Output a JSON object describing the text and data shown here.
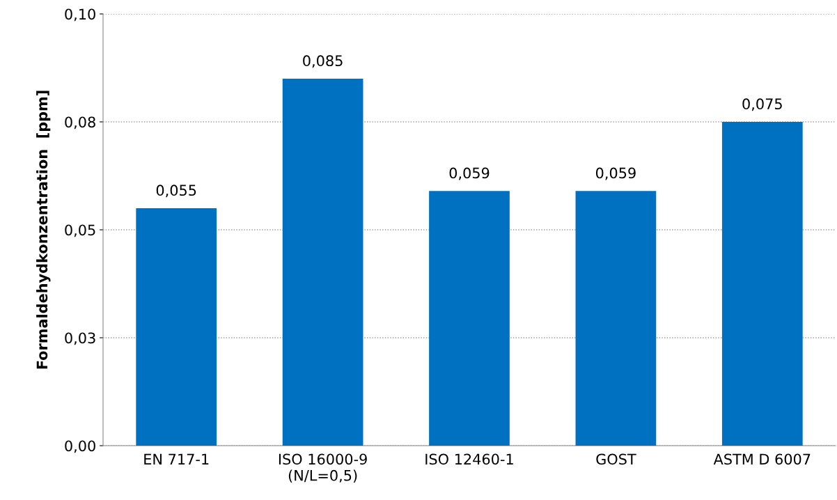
{
  "chart_data": {
    "type": "bar",
    "ylabel": "Formaldehydkonzentration  [ppm]",
    "categories": [
      "EN 717-1",
      "ISO 16000-9\n(N/L=0,5)",
      "ISO 12460-1",
      "GOST",
      "ASTM D 6007"
    ],
    "values": [
      0.055,
      0.085,
      0.059,
      0.059,
      0.075
    ],
    "value_labels": [
      "0,055",
      "0,085",
      "0,059",
      "0,059",
      "0,075"
    ],
    "color": "#0070c0",
    "ylim": [
      0,
      0.1
    ],
    "yticks": [
      {
        "value": 0,
        "label": "0,00"
      },
      {
        "value": 0.025,
        "label": "0,03"
      },
      {
        "value": 0.05,
        "label": "0,05"
      },
      {
        "value": 0.075,
        "label": "0,08"
      },
      {
        "value": 0.1,
        "label": "0,10"
      }
    ],
    "grid": "y"
  }
}
